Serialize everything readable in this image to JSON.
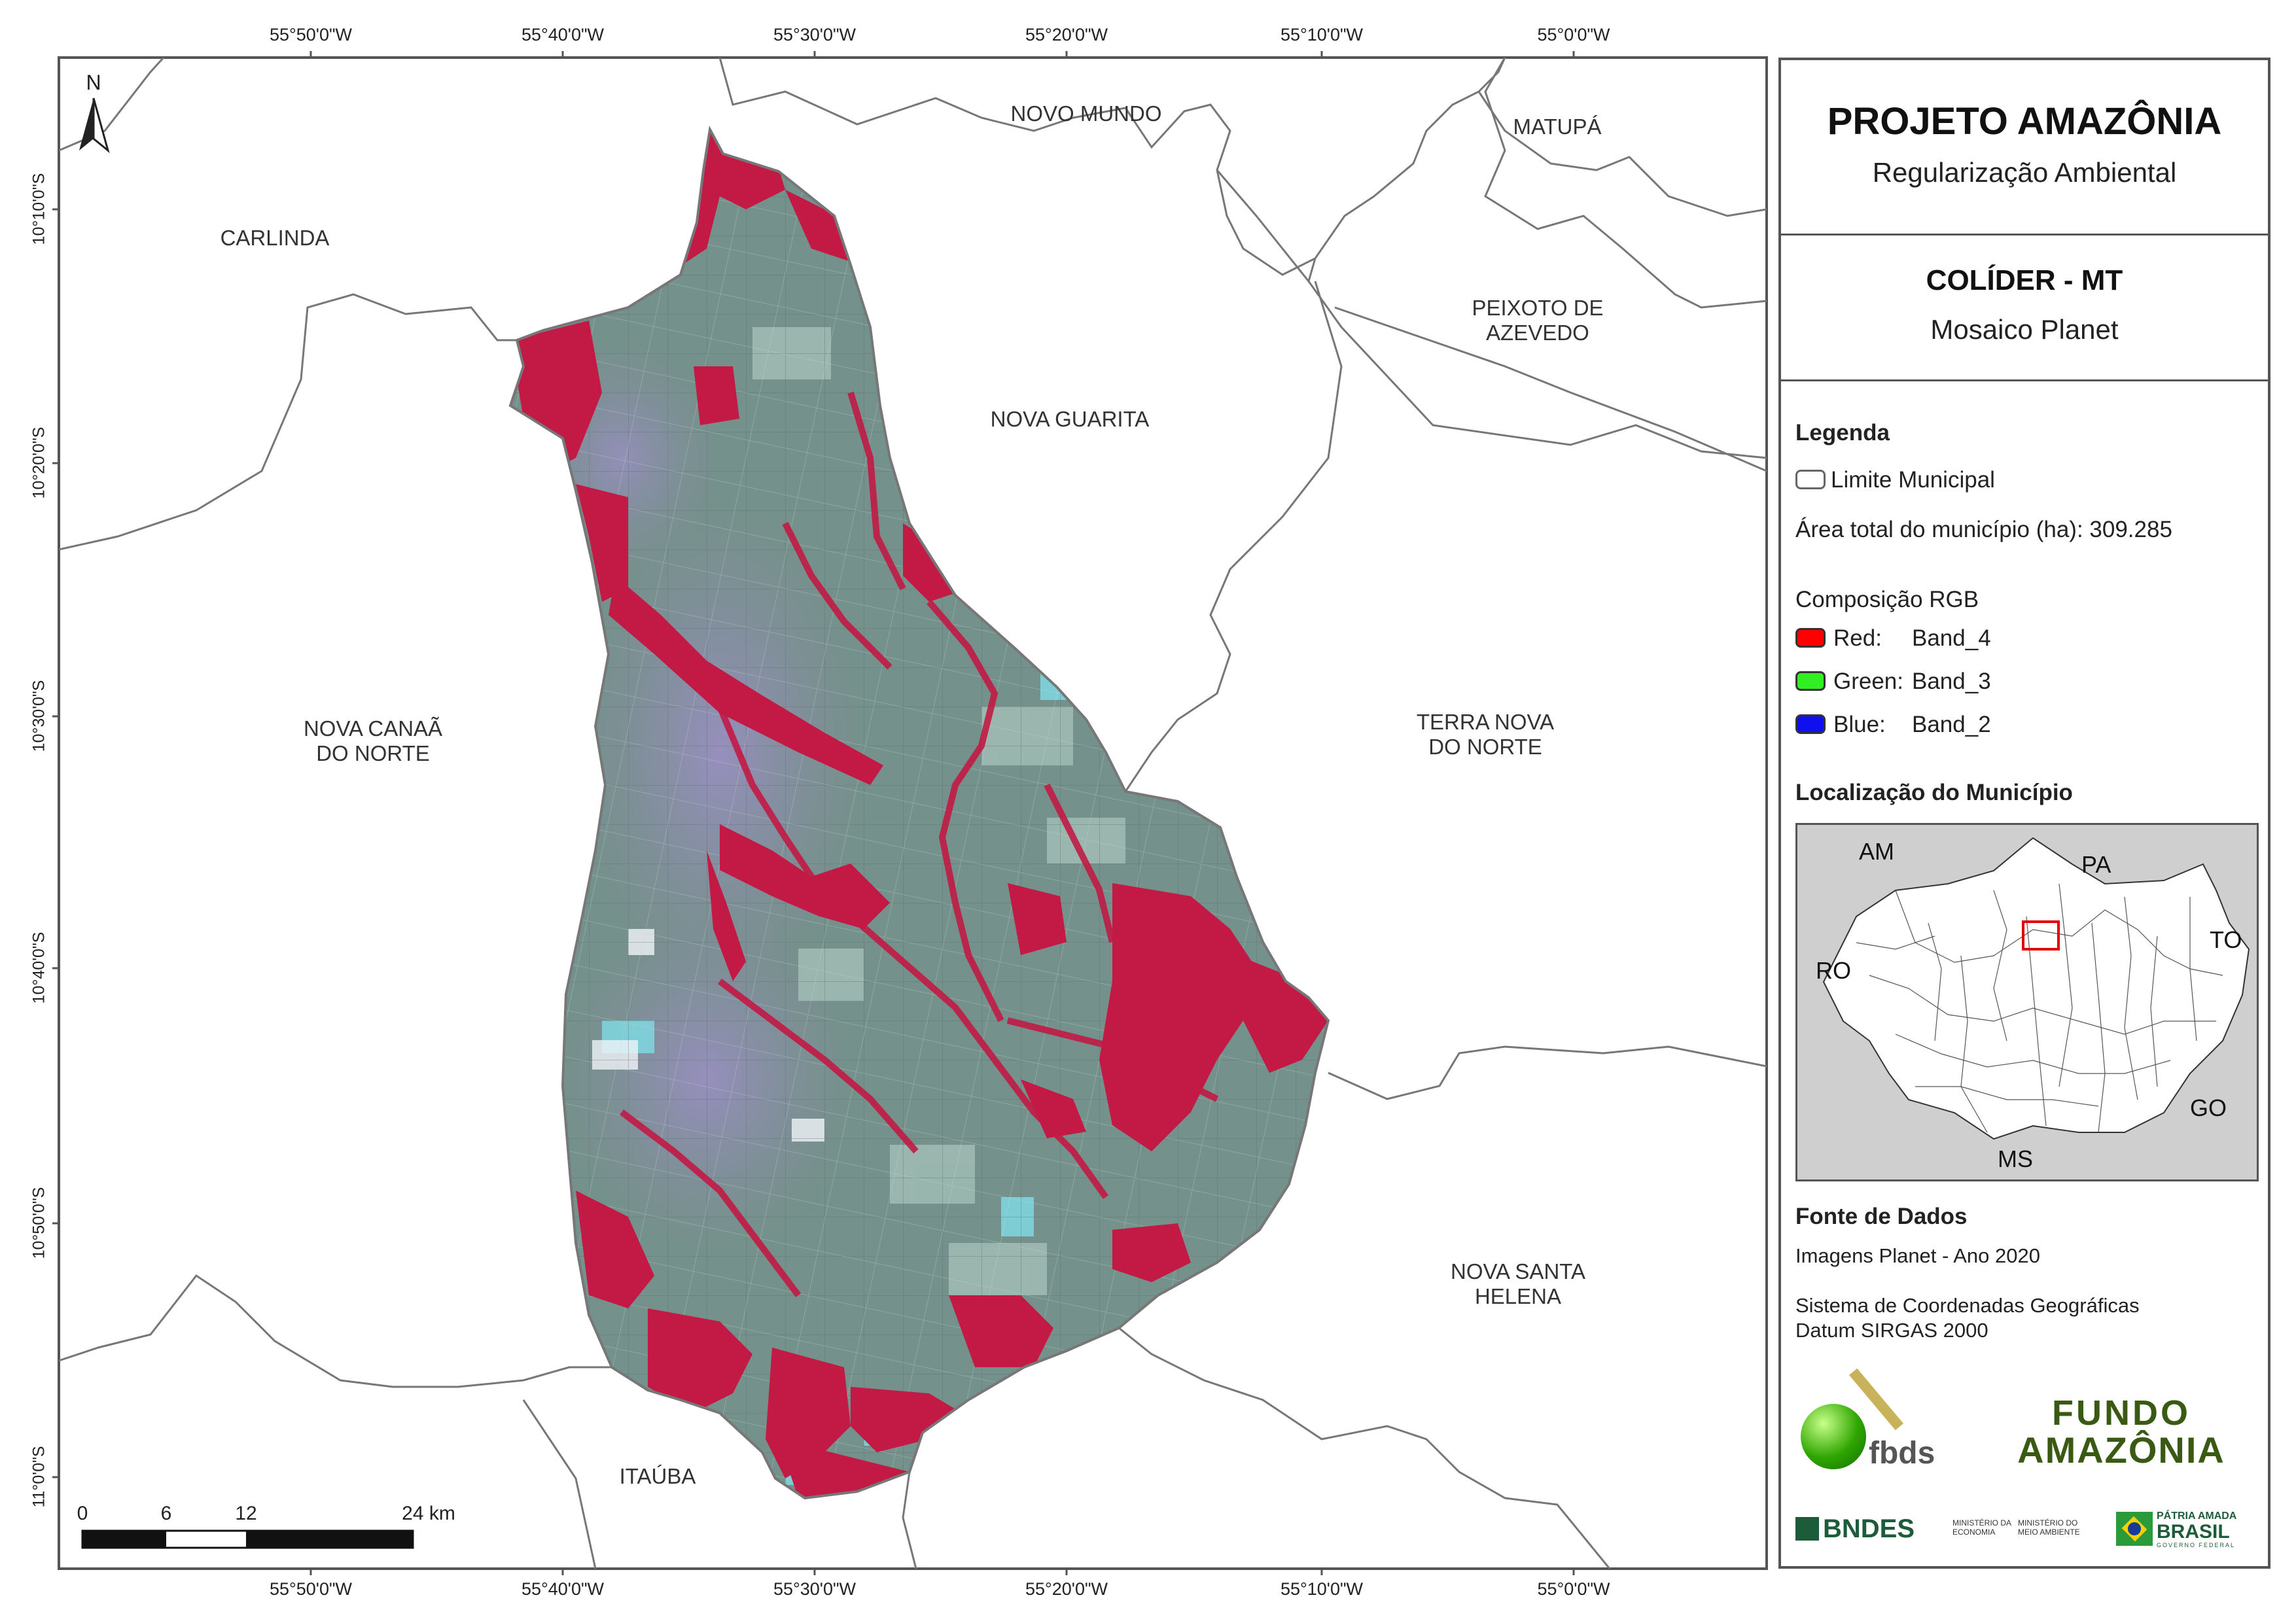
{
  "map": {
    "coords_top": [
      "55°50'0\"W",
      "55°40'0\"W",
      "55°30'0\"W",
      "55°20'0\"W",
      "55°10'0\"W",
      "55°0'0\"W"
    ],
    "coords_bottom": [
      "55°50'0\"W",
      "55°40'0\"W",
      "55°30'0\"W",
      "55°20'0\"W",
      "55°10'0\"W",
      "55°0'0\"W"
    ],
    "coords_left": [
      "10°10'0\"S",
      "10°20'0\"S",
      "10°30'0\"S",
      "10°40'0\"S",
      "10°50'0\"S",
      "11°0'0\"S"
    ],
    "north_label": "N",
    "municipalities": {
      "novo_mundo": "NOVO MUNDO",
      "matupa": "MATUPÁ",
      "carlinda": "CARLINDA",
      "peixoto_1": "PEIXOTO DE",
      "peixoto_2": "AZEVEDO",
      "nova_guarita": "NOVA GUARITA",
      "nova_canaa_1": "NOVA CANAÃ",
      "nova_canaa_2": "DO NORTE",
      "terra_nova_1": "TERRA NOVA",
      "terra_nova_2": "DO NORTE",
      "nova_santa_1": "NOVA SANTA",
      "nova_santa_2": "HELENA",
      "itauba": "ITAÚBA"
    },
    "scale": {
      "ticks": [
        "0",
        "6",
        "12",
        "24 km"
      ]
    },
    "colors": {
      "vegetation": "#c21a45",
      "pasture_green": "#6f9a86",
      "pasture_purple": "#8a7fa8",
      "water": "#0e1a22",
      "bare": "#7fd8e0"
    }
  },
  "panel": {
    "title": "PROJETO AMAZÔNIA",
    "subtitle": "Regularização Ambiental",
    "municipality": "COLÍDER - MT",
    "mosaic": "Mosaico Planet",
    "legend_title": "Legenda",
    "limit_label": "Limite Municipal",
    "area_label": "Área total do município (ha): 309.285",
    "rgb_title": "Composição RGB",
    "bands": [
      {
        "label": "Red:",
        "band": "Band_4",
        "color": "#ff0000"
      },
      {
        "label": "Green:",
        "band": "Band_3",
        "color": "#33ee22"
      },
      {
        "label": "Blue:",
        "band": "Band_2",
        "color": "#1010ee"
      }
    ],
    "location_title": "Localização do Município",
    "inset_states": {
      "am": "AM",
      "pa": "PA",
      "to": "TO",
      "ro": "RO",
      "go": "GO",
      "ms": "MS"
    },
    "source_title": "Fonte de Dados",
    "source_1": "Imagens Planet - Ano 2020",
    "source_2": "Sistema de Coordenadas Geográficas",
    "source_3": "Datum SIRGAS 2000",
    "logos": {
      "fbds": "fbds",
      "fundo_1": "FUNDO",
      "fundo_2": "AMAZÔNIA",
      "bndes": "BNDES",
      "min_economia_1": "MINISTÉRIO DA",
      "min_economia_2": "ECONOMIA",
      "min_meio_1": "MINISTÉRIO DO",
      "min_meio_2": "MEIO AMBIENTE",
      "brasil_1": "PÁTRIA AMADA",
      "brasil_2": "BRASIL",
      "brasil_3": "GOVERNO FEDERAL"
    }
  }
}
